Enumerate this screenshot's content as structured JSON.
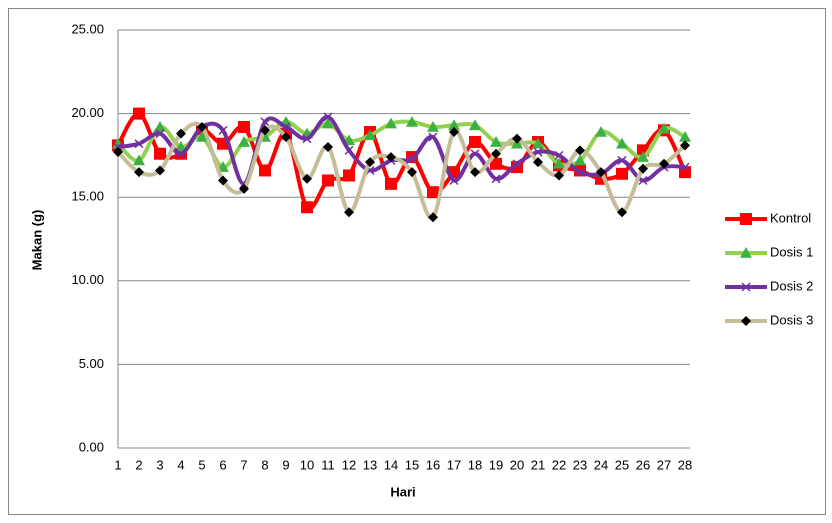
{
  "chart_data": {
    "type": "line",
    "x_label": "Hari",
    "y_label": "Makan (g)",
    "categories": [
      "1",
      "2",
      "3",
      "4",
      "5",
      "6",
      "7",
      "8",
      "9",
      "10",
      "11",
      "12",
      "13",
      "14",
      "15",
      "16",
      "17",
      "18",
      "19",
      "20",
      "21",
      "22",
      "23",
      "24",
      "25",
      "26",
      "27",
      "28"
    ],
    "ylim": [
      0,
      25
    ],
    "yticks": [
      {
        "value": 0,
        "label": "0.00"
      },
      {
        "value": 5,
        "label": "5.00"
      },
      {
        "value": 10,
        "label": "10.00"
      },
      {
        "value": 15,
        "label": "15.00"
      },
      {
        "value": 20,
        "label": "20.00"
      },
      {
        "value": 25,
        "label": "25.00"
      }
    ],
    "grid": true,
    "smooth": true,
    "legend": "right",
    "series": [
      {
        "name": "Kontrol",
        "color": "#ff0000",
        "marker": "square",
        "marker_color": "#ff0000",
        "values": [
          18.1,
          20.0,
          17.6,
          17.6,
          19.0,
          18.2,
          19.2,
          16.6,
          18.8,
          14.4,
          16.0,
          16.3,
          18.9,
          15.8,
          17.4,
          15.3,
          16.5,
          18.3,
          17.0,
          16.8,
          18.3,
          16.9,
          16.6,
          16.1,
          16.4,
          17.8,
          19.0,
          16.5
        ]
      },
      {
        "name": "Dosis 1",
        "color": "#92d050",
        "marker": "triangle",
        "marker_color": "#3cb043",
        "values": [
          18.2,
          17.2,
          19.2,
          18.0,
          18.6,
          16.8,
          18.3,
          18.6,
          19.5,
          18.8,
          19.4,
          18.4,
          18.7,
          19.4,
          19.5,
          19.2,
          19.3,
          19.3,
          18.3,
          18.2,
          18.2,
          17.0,
          17.2,
          18.9,
          18.2,
          17.4,
          19.1,
          18.6
        ]
      },
      {
        "name": "Dosis 2",
        "color": "#7030a0",
        "marker": "cross",
        "marker_color": "#7030a0",
        "values": [
          18.0,
          18.2,
          18.8,
          17.6,
          19.2,
          19.0,
          15.8,
          19.5,
          19.2,
          18.5,
          19.8,
          17.8,
          16.6,
          17.2,
          17.3,
          18.6,
          16.0,
          17.6,
          16.1,
          17.0,
          17.7,
          17.5,
          16.5,
          16.4,
          17.2,
          16.0,
          16.8,
          16.8
        ]
      },
      {
        "name": "Dosis 3",
        "color": "#c4bd97",
        "marker": "diamond",
        "marker_color": "#000000",
        "values": [
          17.7,
          16.5,
          16.6,
          18.8,
          19.2,
          16.0,
          15.5,
          19.0,
          18.6,
          16.1,
          18.0,
          14.1,
          17.1,
          17.4,
          16.5,
          13.8,
          18.9,
          16.5,
          17.6,
          18.5,
          17.1,
          16.3,
          17.8,
          16.5,
          14.1,
          16.7,
          17.0,
          18.1
        ]
      }
    ]
  }
}
